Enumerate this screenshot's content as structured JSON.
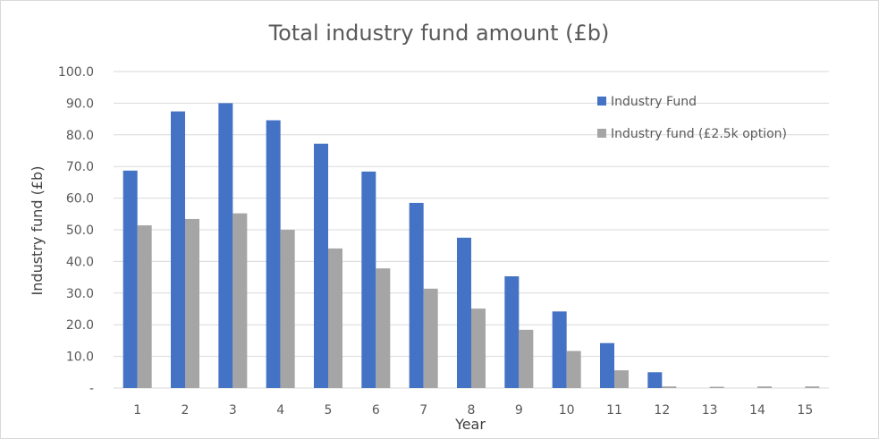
{
  "chart_data": {
    "type": "bar",
    "title": "Total industry fund amount (£b)",
    "xlabel": "Year",
    "ylabel": "Industry fund (£b)",
    "ylim": [
      0,
      100
    ],
    "y_ticks": [
      {
        "value": 0,
        "label": "-"
      },
      {
        "value": 10,
        "label": "10.0"
      },
      {
        "value": 20,
        "label": "20.0"
      },
      {
        "value": 30,
        "label": "30.0"
      },
      {
        "value": 40,
        "label": "40.0"
      },
      {
        "value": 50,
        "label": "50.0"
      },
      {
        "value": 60,
        "label": "60.0"
      },
      {
        "value": 70,
        "label": "70.0"
      },
      {
        "value": 80,
        "label": "80.0"
      },
      {
        "value": 90,
        "label": "90.0"
      },
      {
        "value": 100,
        "label": "100.0"
      }
    ],
    "categories": [
      "1",
      "2",
      "3",
      "4",
      "5",
      "6",
      "7",
      "8",
      "9",
      "10",
      "11",
      "12",
      "13",
      "14",
      "15"
    ],
    "series": [
      {
        "name": "Industry Fund",
        "color": "#4472c4",
        "values": [
          68.7,
          87.4,
          90.0,
          84.6,
          77.2,
          68.4,
          58.5,
          47.5,
          35.3,
          24.2,
          14.2,
          5.0,
          0.0,
          0.0,
          0.0
        ]
      },
      {
        "name": "Industry fund (£2.5k option)",
        "color": "#a5a5a5",
        "values": [
          51.4,
          53.4,
          55.2,
          50.0,
          44.1,
          37.8,
          31.4,
          25.1,
          18.4,
          11.7,
          5.6,
          0.5,
          0.4,
          0.5,
          0.5
        ]
      }
    ],
    "grid": true,
    "legend_position": "top-right"
  }
}
